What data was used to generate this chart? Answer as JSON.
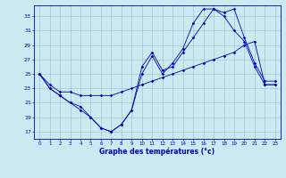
{
  "title": "Graphe des températures (°c)",
  "bg_color": "#cce8f0",
  "line_color": "#0000bb",
  "grid_color": "#99bfcc",
  "xlim_min": -0.5,
  "xlim_max": 23.5,
  "ylim_min": 16.0,
  "ylim_max": 34.5,
  "xticks": [
    0,
    1,
    2,
    3,
    4,
    5,
    6,
    7,
    8,
    9,
    10,
    11,
    12,
    13,
    14,
    15,
    16,
    17,
    18,
    19,
    20,
    21,
    22,
    23
  ],
  "yticks": [
    17,
    19,
    21,
    23,
    25,
    27,
    29,
    31,
    33
  ],
  "s1_x": [
    0,
    1,
    2,
    3,
    4,
    5,
    6,
    7,
    8,
    9,
    10,
    11,
    12,
    13,
    14,
    15,
    16,
    17,
    18,
    19,
    20,
    21,
    22,
    23
  ],
  "s1_y": [
    25,
    23,
    22,
    21,
    20,
    19,
    17.5,
    17,
    18,
    20,
    26,
    28,
    25.5,
    26,
    28,
    30,
    32,
    34,
    33.5,
    34,
    30,
    26.5,
    24,
    24
  ],
  "s2_x": [
    0,
    1,
    2,
    3,
    4,
    5,
    6,
    7,
    8,
    9,
    10,
    11,
    12,
    13,
    14,
    15,
    16,
    17,
    18,
    19,
    20,
    21,
    22,
    23
  ],
  "s2_y": [
    25,
    23.5,
    22.5,
    22.5,
    22,
    22,
    22,
    22,
    22.5,
    23,
    23.5,
    24,
    24.5,
    25,
    25.5,
    26,
    26.5,
    27,
    27.5,
    28,
    29,
    29.5,
    23.5,
    23.5
  ],
  "s3_x": [
    0,
    1,
    2,
    3,
    4,
    5,
    6,
    7,
    8,
    9,
    10,
    11,
    12,
    13,
    14,
    15,
    16,
    17,
    18,
    19,
    20,
    21,
    22,
    23
  ],
  "s3_y": [
    25,
    23,
    22,
    21,
    20.5,
    19,
    17.5,
    17,
    18,
    20,
    25,
    27.5,
    25,
    26.5,
    28.5,
    32,
    34,
    34,
    33,
    31,
    29.5,
    26,
    23.5,
    23.5
  ]
}
